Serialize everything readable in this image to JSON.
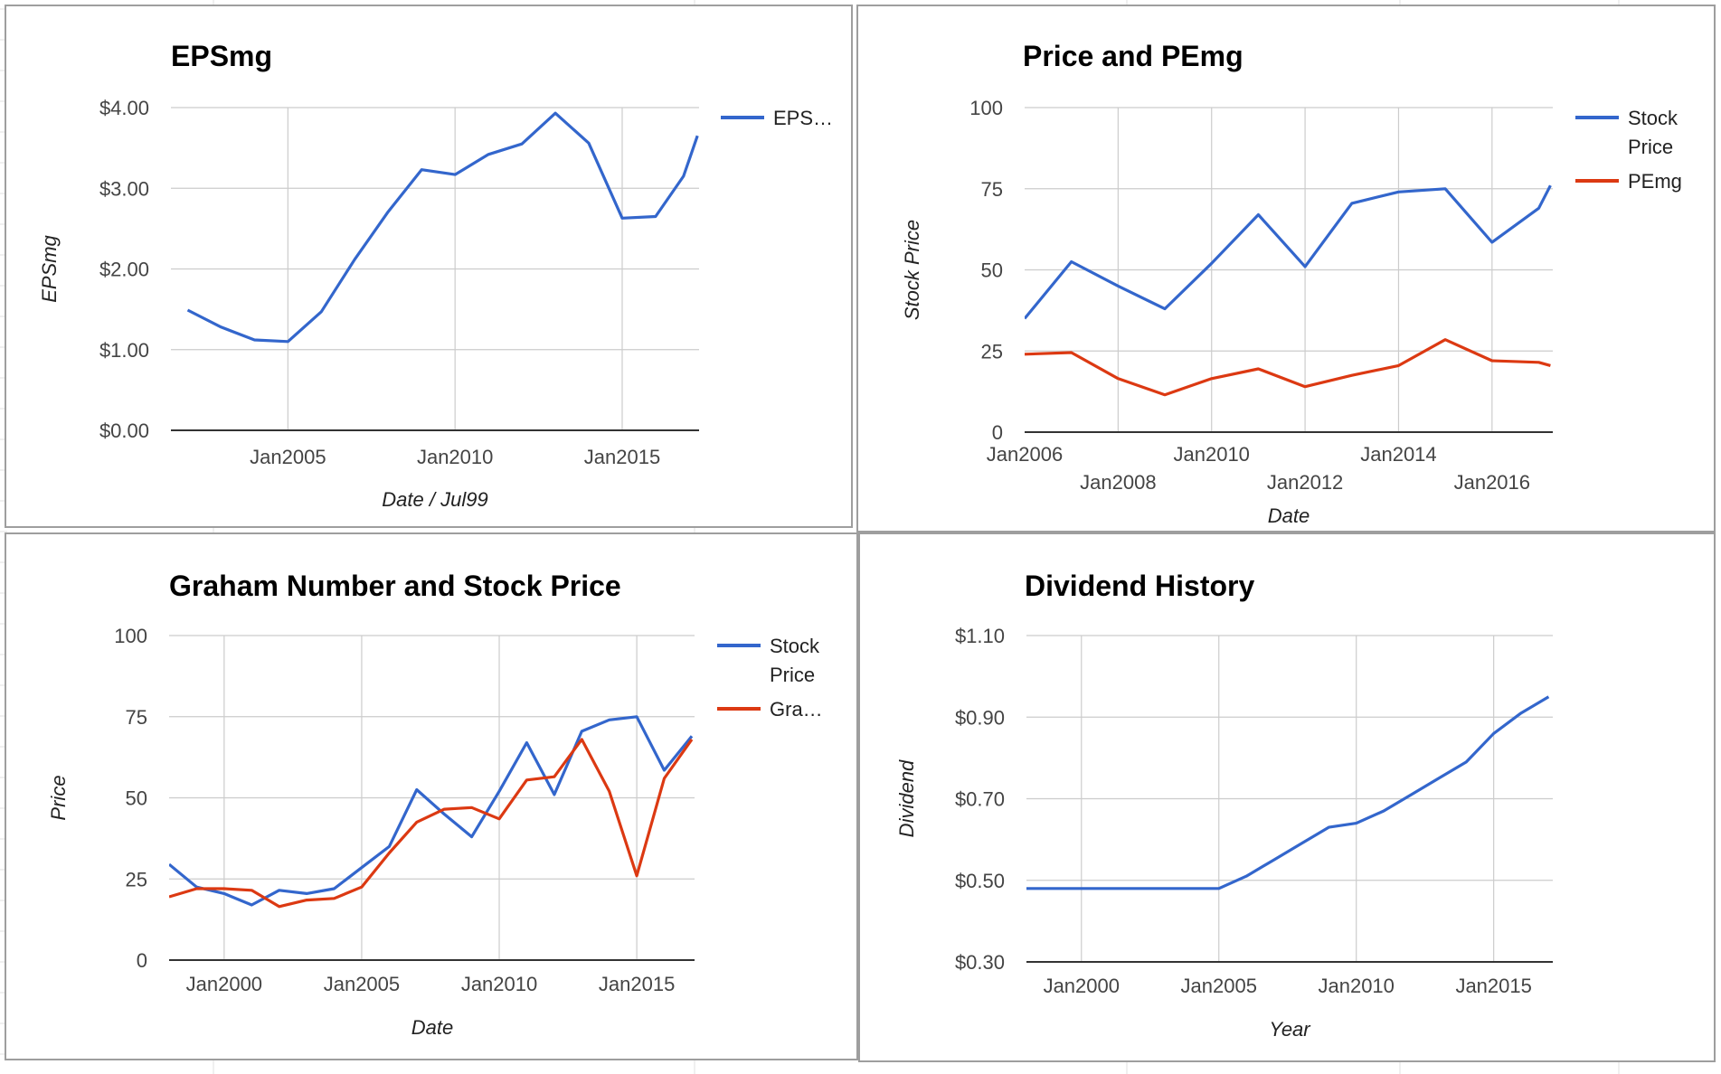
{
  "theme": {
    "blue": "#3366cc",
    "red": "#dc3912",
    "grid": "#cccccc",
    "sheet_lines": "#e2e2e2"
  },
  "chart_data": [
    {
      "type": "line",
      "title": "EPSmg",
      "xlabel": "Date / Jul99",
      "ylabel": "EPSmg",
      "x_ticks": [
        "Jan2005",
        "Jan2010",
        "Jan2015"
      ],
      "y_ticks": [
        "$0.00",
        "$1.00",
        "$2.00",
        "$3.00",
        "$4.00"
      ],
      "ylim": [
        0,
        4
      ],
      "grid": true,
      "legend": "right",
      "series": [
        {
          "name": "EPS…",
          "color": "#3366cc",
          "x": [
            "2002-01",
            "2003-01",
            "2004-01",
            "2005-01",
            "2006-01",
            "2007-01",
            "2008-01",
            "2009-01",
            "2010-01",
            "2011-01",
            "2012-01",
            "2013-01",
            "2014-01",
            "2015-01",
            "2016-01",
            "2016-11",
            "2017-04"
          ],
          "values": [
            1.49,
            1.28,
            1.12,
            1.1,
            1.47,
            2.12,
            2.71,
            3.23,
            3.17,
            3.42,
            3.55,
            3.93,
            3.56,
            2.63,
            2.65,
            3.15,
            3.65
          ]
        }
      ]
    },
    {
      "type": "line",
      "title": "Price and PEmg",
      "xlabel": "Date",
      "ylabel": "Stock Price",
      "x_ticks": [
        "Jan2006",
        "Jan2008",
        "Jan2010",
        "Jan2012",
        "Jan2014",
        "Jan2016"
      ],
      "y_ticks": [
        "0",
        "25",
        "50",
        "75",
        "100"
      ],
      "ylim": [
        0,
        100
      ],
      "grid": true,
      "legend": "right",
      "series": [
        {
          "name": "Stock Price",
          "color": "#3366cc",
          "x": [
            "2006-01",
            "2007-01",
            "2008-01",
            "2009-01",
            "2010-01",
            "2011-01",
            "2012-01",
            "2013-01",
            "2014-01",
            "2015-01",
            "2016-01",
            "2017-01",
            "2017-04"
          ],
          "values": [
            35,
            52.5,
            45,
            38,
            52,
            67,
            51,
            70.5,
            74,
            75,
            58.5,
            69,
            76
          ]
        },
        {
          "name": "PEmg",
          "color": "#dc3912",
          "x": [
            "2006-01",
            "2007-01",
            "2008-01",
            "2009-01",
            "2010-01",
            "2011-01",
            "2012-01",
            "2013-01",
            "2014-01",
            "2015-01",
            "2016-01",
            "2017-01",
            "2017-04"
          ],
          "values": [
            24,
            24.5,
            16.5,
            11.5,
            16.5,
            19.5,
            14,
            17.5,
            20.5,
            28.5,
            22,
            21.5,
            20.5
          ]
        }
      ]
    },
    {
      "type": "line",
      "title": "Graham Number and Stock Price",
      "xlabel": "Date",
      "ylabel": "Price",
      "x_ticks": [
        "Jan2000",
        "Jan2005",
        "Jan2010",
        "Jan2015"
      ],
      "y_ticks": [
        "0",
        "25",
        "50",
        "75",
        "100"
      ],
      "ylim": [
        0,
        100
      ],
      "grid": true,
      "legend": "right",
      "series": [
        {
          "name": "Stock Price",
          "color": "#3366cc",
          "x": [
            "1998-01",
            "1999-01",
            "2000-01",
            "2001-01",
            "2002-01",
            "2003-01",
            "2004-01",
            "2005-01",
            "2006-01",
            "2007-01",
            "2008-01",
            "2009-01",
            "2010-01",
            "2011-01",
            "2012-01",
            "2013-01",
            "2014-01",
            "2015-01",
            "2016-01",
            "2017-01"
          ],
          "values": [
            29.5,
            22.5,
            20.5,
            17,
            21.5,
            20.5,
            22,
            28.5,
            35,
            52.5,
            45,
            38,
            52,
            67,
            51,
            70.5,
            74,
            75,
            58.5,
            69
          ]
        },
        {
          "name": "Gra…",
          "color": "#dc3912",
          "x": [
            "1998-01",
            "1999-01",
            "2000-01",
            "2001-01",
            "2002-01",
            "2003-01",
            "2004-01",
            "2005-01",
            "2006-01",
            "2007-01",
            "2008-01",
            "2009-01",
            "2010-01",
            "2011-01",
            "2012-01",
            "2013-01",
            "2014-01",
            "2015-01",
            "2016-01",
            "2017-01"
          ],
          "values": [
            19.5,
            22,
            22,
            21.5,
            16.5,
            18.5,
            19,
            22.5,
            33,
            42.5,
            46.5,
            47,
            43.5,
            55.5,
            56.5,
            68,
            52,
            26,
            56,
            68
          ]
        }
      ]
    },
    {
      "type": "line",
      "title": "Dividend History",
      "xlabel": "Year",
      "ylabel": "Dividend",
      "x_ticks": [
        "Jan2000",
        "Jan2005",
        "Jan2010",
        "Jan2015"
      ],
      "y_ticks": [
        "$0.30",
        "$0.50",
        "$0.70",
        "$0.90",
        "$1.10"
      ],
      "ylim": [
        0.3,
        1.1
      ],
      "grid": true,
      "legend": "none",
      "series": [
        {
          "color": "#3366cc",
          "x": [
            "1998-01",
            "1999-01",
            "2000-01",
            "2001-01",
            "2002-01",
            "2003-01",
            "2004-01",
            "2005-01",
            "2006-01",
            "2007-01",
            "2008-01",
            "2009-01",
            "2010-01",
            "2011-01",
            "2012-01",
            "2013-01",
            "2014-01",
            "2015-01",
            "2016-01",
            "2017-01"
          ],
          "values": [
            0.48,
            0.48,
            0.48,
            0.48,
            0.48,
            0.48,
            0.48,
            0.48,
            0.51,
            0.55,
            0.59,
            0.63,
            0.64,
            0.67,
            0.71,
            0.75,
            0.79,
            0.86,
            0.91,
            0.95
          ]
        }
      ]
    }
  ]
}
